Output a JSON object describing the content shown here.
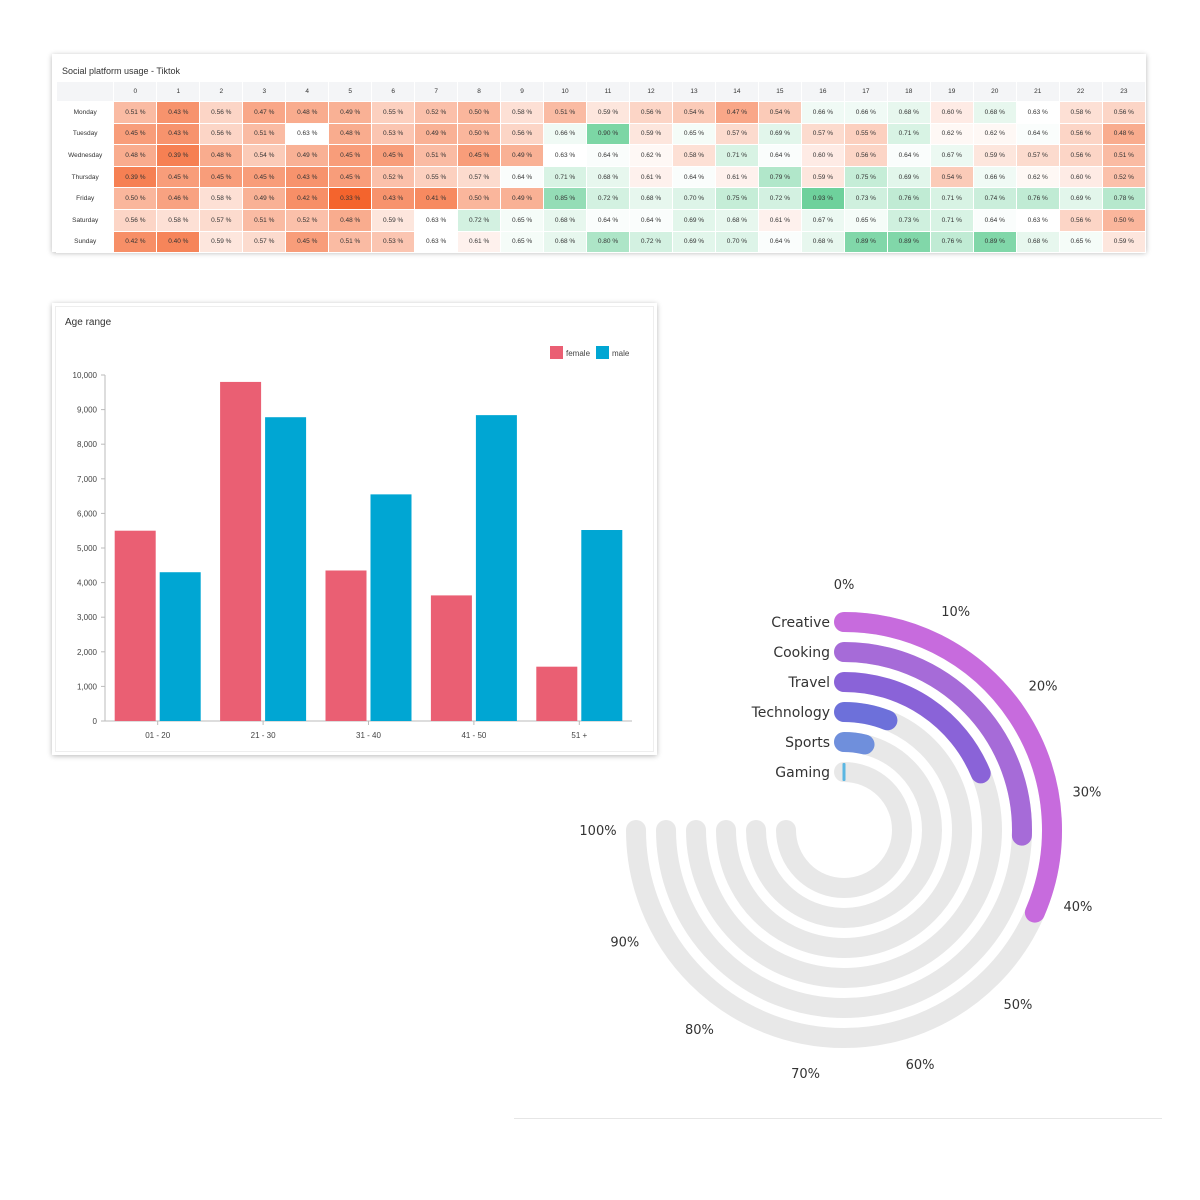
{
  "chart_data": [
    {
      "type": "heatmap",
      "title": "Social platform usage - Tiktok",
      "x": [
        "0",
        "1",
        "2",
        "3",
        "4",
        "5",
        "6",
        "7",
        "8",
        "9",
        "10",
        "11",
        "12",
        "13",
        "14",
        "15",
        "16",
        "17",
        "18",
        "19",
        "20",
        "21",
        "22",
        "23"
      ],
      "y": [
        "Monday",
        "Tuesday",
        "Wednesday",
        "Thursday",
        "Friday",
        "Saturday",
        "Sunday"
      ],
      "values": [
        [
          0.51,
          0.43,
          0.56,
          0.47,
          0.48,
          0.49,
          0.55,
          0.52,
          0.5,
          0.58,
          0.51,
          0.59,
          0.56,
          0.54,
          0.47,
          0.54,
          0.66,
          0.66,
          0.68,
          0.6,
          0.68,
          0.63,
          0.58,
          0.56
        ],
        [
          0.45,
          0.43,
          0.56,
          0.51,
          0.63,
          0.48,
          0.53,
          0.49,
          0.5,
          0.56,
          0.66,
          0.9,
          0.59,
          0.65,
          0.57,
          0.69,
          0.57,
          0.55,
          0.71,
          0.62,
          0.62,
          0.64,
          0.56,
          0.48
        ],
        [
          0.48,
          0.39,
          0.48,
          0.54,
          0.49,
          0.45,
          0.45,
          0.51,
          0.45,
          0.49,
          0.63,
          0.64,
          0.62,
          0.58,
          0.71,
          0.64,
          0.6,
          0.56,
          0.64,
          0.67,
          0.59,
          0.57,
          0.56,
          0.51
        ],
        [
          0.39,
          0.45,
          0.45,
          0.45,
          0.43,
          0.45,
          0.52,
          0.55,
          0.57,
          0.64,
          0.71,
          0.68,
          0.61,
          0.64,
          0.61,
          0.79,
          0.59,
          0.75,
          0.69,
          0.54,
          0.66,
          0.62,
          0.6,
          0.52
        ],
        [
          0.5,
          0.46,
          0.58,
          0.49,
          0.42,
          0.33,
          0.43,
          0.41,
          0.5,
          0.49,
          0.85,
          0.72,
          0.68,
          0.7,
          0.75,
          0.72,
          0.93,
          0.73,
          0.76,
          0.71,
          0.74,
          0.76,
          0.69,
          0.78
        ],
        [
          0.56,
          0.58,
          0.57,
          0.51,
          0.52,
          0.48,
          0.59,
          0.63,
          0.72,
          0.65,
          0.68,
          0.64,
          0.64,
          0.69,
          0.68,
          0.61,
          0.67,
          0.65,
          0.73,
          0.71,
          0.64,
          0.63,
          0.56,
          0.5
        ],
        [
          0.42,
          0.4,
          0.59,
          0.57,
          0.45,
          0.51,
          0.53,
          0.63,
          0.61,
          0.65,
          0.68,
          0.8,
          0.72,
          0.69,
          0.7,
          0.64,
          0.68,
          0.89,
          0.89,
          0.76,
          0.89,
          0.68,
          0.65,
          0.59
        ]
      ],
      "value_suffix": " %",
      "color_low": "#f4642d",
      "color_mid": "#ffffff",
      "color_high": "#54c98a"
    },
    {
      "type": "bar",
      "title": "Age range",
      "categories": [
        "01 - 20",
        "21 - 30",
        "31 - 40",
        "41 - 50",
        "51 +"
      ],
      "series": [
        {
          "name": "female",
          "values": [
            5500,
            9800,
            4350,
            3630,
            1570
          ],
          "color": "#ea5f73"
        },
        {
          "name": "male",
          "values": [
            4300,
            8780,
            6550,
            8840,
            5520
          ],
          "color": "#00a6d3"
        }
      ],
      "ylim": [
        0,
        10000
      ],
      "yticks": [
        0,
        1000,
        2000,
        3000,
        4000,
        5000,
        6000,
        7000,
        8000,
        9000,
        10000
      ],
      "ytick_labels": [
        "0",
        "1,000",
        "2,000",
        "3,000",
        "4,000",
        "5,000",
        "6,000",
        "7,000",
        "8,000",
        "9,000",
        "10,000"
      ],
      "legend": "top-right"
    },
    {
      "type": "radial-bar",
      "categories": [
        "Creative",
        "Cooking",
        "Travel",
        "Technology",
        "Sports",
        "Gaming"
      ],
      "values": [
        42,
        34,
        25,
        8,
        5,
        1
      ],
      "colors": [
        "#c76bdd",
        "#a66bd8",
        "#8a63d8",
        "#6d70da",
        "#6f8fdc",
        "#5ab6e2"
      ],
      "track_color": "#e8e8e8",
      "scale_max": 100,
      "tick_labels": [
        "0%",
        "10%",
        "20%",
        "30%",
        "40%",
        "50%",
        "60%",
        "70%",
        "80%",
        "90%",
        "100%"
      ],
      "ticks": [
        0,
        10,
        20,
        30,
        40,
        50,
        60,
        70,
        80,
        90,
        100
      ]
    }
  ]
}
